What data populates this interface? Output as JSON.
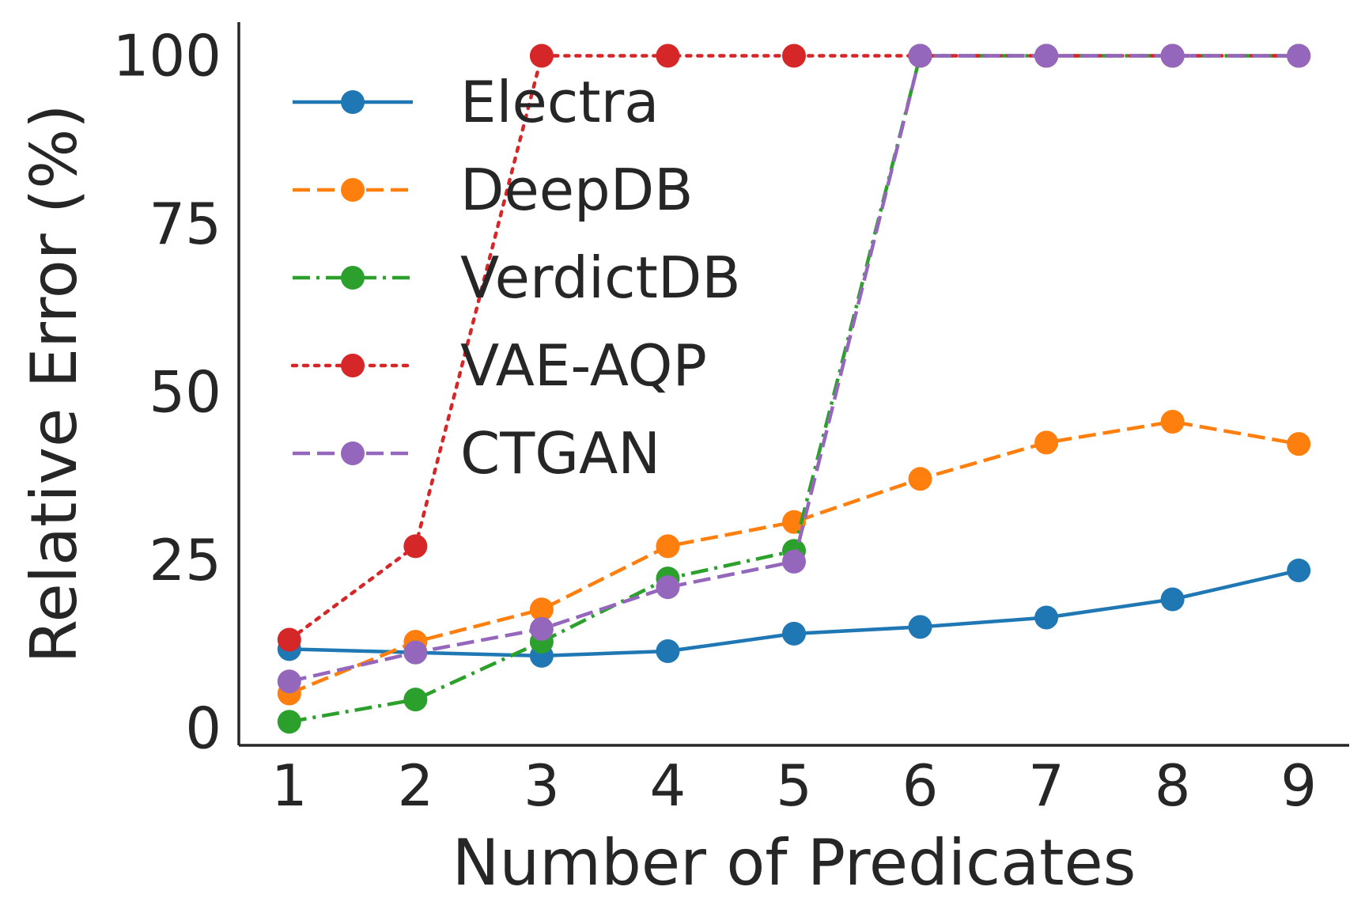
{
  "chart_data": {
    "type": "line",
    "title": "",
    "xlabel": "Number of Predicates",
    "ylabel": "Relative Error (%)",
    "x": [
      1,
      2,
      3,
      4,
      5,
      6,
      7,
      8,
      9
    ],
    "x_ticks": [
      "1",
      "2",
      "3",
      "4",
      "5",
      "6",
      "7",
      "8",
      "9"
    ],
    "y_ticks": [
      "0",
      "25",
      "50",
      "75",
      "100"
    ],
    "y_tick_values": [
      0,
      25,
      50,
      75,
      100
    ],
    "xlim": [
      0.6,
      9.4
    ],
    "ylim": [
      -2.5,
      105
    ],
    "grid": false,
    "legend_position": "upper-left",
    "series": [
      {
        "name": "Electra",
        "color": "#1f77b4",
        "style": "solid",
        "values": [
          11.8,
          11.3,
          10.8,
          11.5,
          14.1,
          15.1,
          16.5,
          19.2,
          23.5
        ]
      },
      {
        "name": "DeepDB",
        "color": "#ff7f0e",
        "style": "dashed",
        "values": [
          5.2,
          12.9,
          17.7,
          27.1,
          30.7,
          37.1,
          42.5,
          45.6,
          42.3
        ]
      },
      {
        "name": "VerdictDB",
        "color": "#2ca02c",
        "style": "dashdot",
        "values": [
          1.0,
          4.3,
          12.9,
          22.3,
          26.4,
          100,
          100,
          100,
          100
        ]
      },
      {
        "name": "VAE-AQP",
        "color": "#d62728",
        "style": "dotted",
        "values": [
          13.2,
          27.1,
          100,
          100,
          100,
          100,
          100,
          100,
          100
        ]
      },
      {
        "name": "CTGAN",
        "color": "#9467bd",
        "style": "dashed",
        "values": [
          7.0,
          11.3,
          14.8,
          21.0,
          24.8,
          100,
          100,
          100,
          100
        ]
      }
    ]
  }
}
